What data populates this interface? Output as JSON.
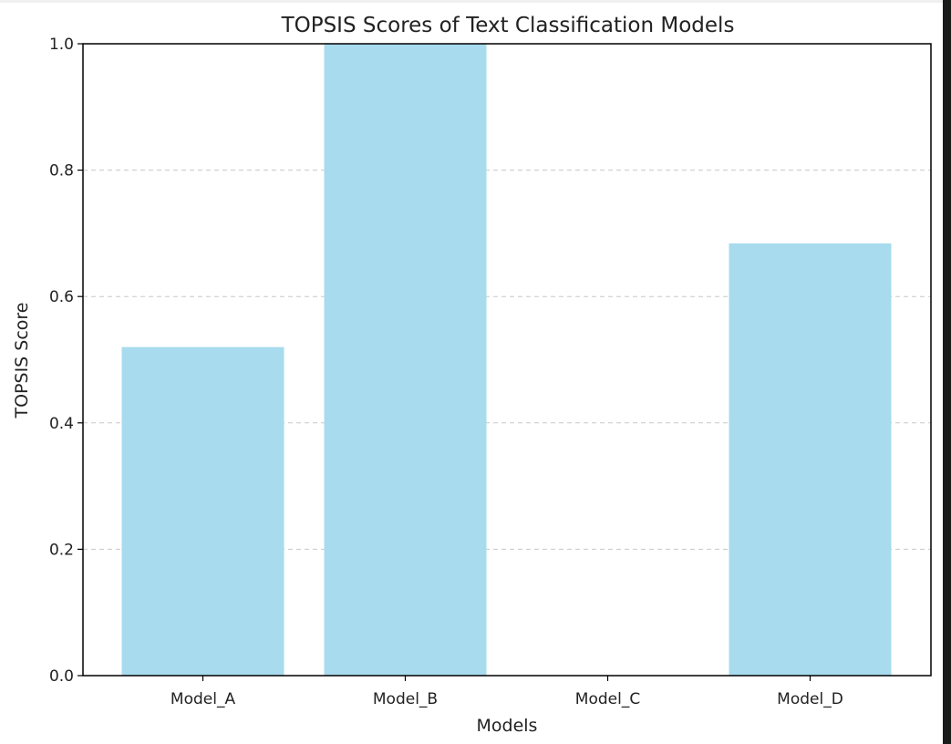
{
  "chart_data": {
    "type": "bar",
    "title": "TOPSIS Scores of Text Classification Models",
    "xlabel": "Models",
    "ylabel": "TOPSIS Score",
    "categories": [
      "Model_A",
      "Model_B",
      "Model_C",
      "Model_D"
    ],
    "values": [
      0.52,
      1.0,
      0.0,
      0.684
    ],
    "ylim": [
      0,
      1.0
    ],
    "yticks": [
      "0.0",
      "0.2",
      "0.4",
      "0.6",
      "0.8",
      "1.0"
    ],
    "grid": "y-dashed",
    "legend": "none",
    "bar_color": "#a8dbed",
    "grid_color": "#c8c8c8",
    "axis_color": "#000000"
  }
}
